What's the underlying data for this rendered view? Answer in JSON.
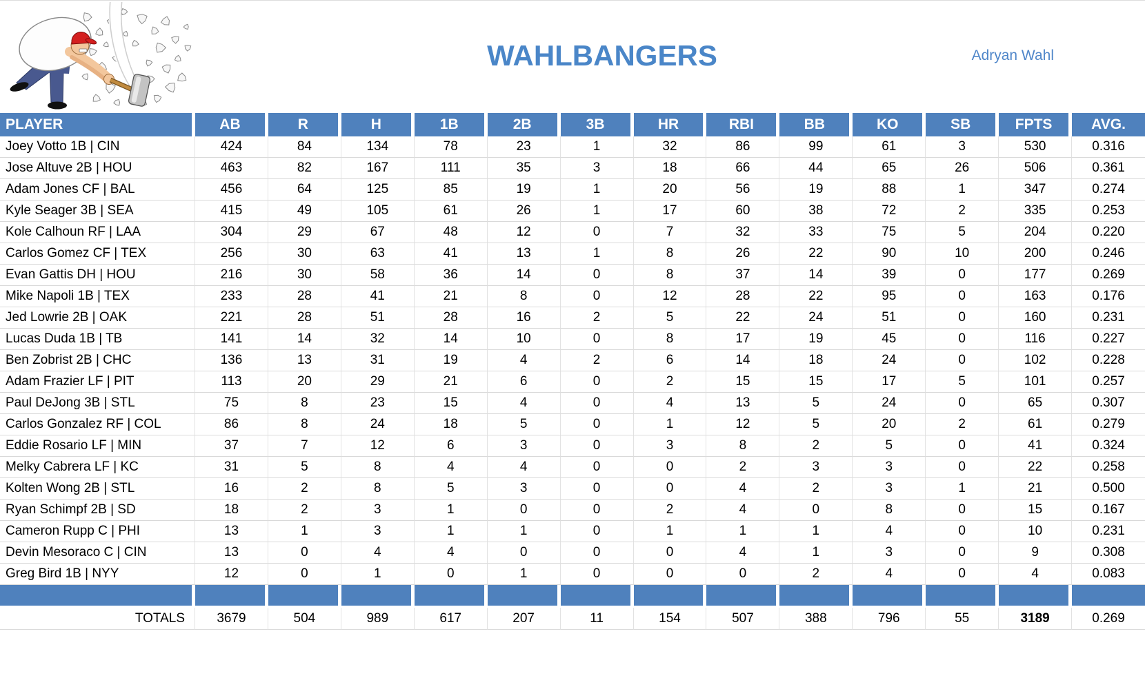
{
  "page": {
    "title": "WAHLBANGERS",
    "owner": "Adryan Wahl",
    "logo": "man-smashing-rocks-with-sledgehammer"
  },
  "colors": {
    "header_blue": "#4f81bd",
    "title_blue": "#4a86c8",
    "grid_line": "#d9d9d9"
  },
  "table": {
    "columns": [
      "PLAYER",
      "AB",
      "R",
      "H",
      "1B",
      "2B",
      "3B",
      "HR",
      "RBI",
      "BB",
      "KO",
      "SB",
      "FPTS",
      "AVG."
    ],
    "rows": [
      {
        "player": "Joey Votto 1B | CIN",
        "stats": [
          "424",
          "84",
          "134",
          "78",
          "23",
          "1",
          "32",
          "86",
          "99",
          "61",
          "3",
          "530",
          "0.316"
        ]
      },
      {
        "player": "Jose Altuve 2B | HOU",
        "stats": [
          "463",
          "82",
          "167",
          "111",
          "35",
          "3",
          "18",
          "66",
          "44",
          "65",
          "26",
          "506",
          "0.361"
        ]
      },
      {
        "player": "Adam Jones CF | BAL",
        "stats": [
          "456",
          "64",
          "125",
          "85",
          "19",
          "1",
          "20",
          "56",
          "19",
          "88",
          "1",
          "347",
          "0.274"
        ]
      },
      {
        "player": "Kyle Seager 3B | SEA",
        "stats": [
          "415",
          "49",
          "105",
          "61",
          "26",
          "1",
          "17",
          "60",
          "38",
          "72",
          "2",
          "335",
          "0.253"
        ]
      },
      {
        "player": "Kole Calhoun RF | LAA",
        "stats": [
          "304",
          "29",
          "67",
          "48",
          "12",
          "0",
          "7",
          "32",
          "33",
          "75",
          "5",
          "204",
          "0.220"
        ]
      },
      {
        "player": "Carlos Gomez CF | TEX",
        "stats": [
          "256",
          "30",
          "63",
          "41",
          "13",
          "1",
          "8",
          "26",
          "22",
          "90",
          "10",
          "200",
          "0.246"
        ]
      },
      {
        "player": "Evan Gattis DH | HOU",
        "stats": [
          "216",
          "30",
          "58",
          "36",
          "14",
          "0",
          "8",
          "37",
          "14",
          "39",
          "0",
          "177",
          "0.269"
        ]
      },
      {
        "player": "Mike Napoli 1B | TEX",
        "stats": [
          "233",
          "28",
          "41",
          "21",
          "8",
          "0",
          "12",
          "28",
          "22",
          "95",
          "0",
          "163",
          "0.176"
        ]
      },
      {
        "player": "Jed Lowrie 2B | OAK",
        "stats": [
          "221",
          "28",
          "51",
          "28",
          "16",
          "2",
          "5",
          "22",
          "24",
          "51",
          "0",
          "160",
          "0.231"
        ]
      },
      {
        "player": "Lucas Duda 1B | TB",
        "stats": [
          "141",
          "14",
          "32",
          "14",
          "10",
          "0",
          "8",
          "17",
          "19",
          "45",
          "0",
          "116",
          "0.227"
        ]
      },
      {
        "player": "Ben Zobrist 2B | CHC",
        "stats": [
          "136",
          "13",
          "31",
          "19",
          "4",
          "2",
          "6",
          "14",
          "18",
          "24",
          "0",
          "102",
          "0.228"
        ]
      },
      {
        "player": "Adam Frazier LF | PIT",
        "stats": [
          "113",
          "20",
          "29",
          "21",
          "6",
          "0",
          "2",
          "15",
          "15",
          "17",
          "5",
          "101",
          "0.257"
        ]
      },
      {
        "player": "Paul DeJong 3B | STL",
        "stats": [
          "75",
          "8",
          "23",
          "15",
          "4",
          "0",
          "4",
          "13",
          "5",
          "24",
          "0",
          "65",
          "0.307"
        ]
      },
      {
        "player": "Carlos Gonzalez RF | COL",
        "stats": [
          "86",
          "8",
          "24",
          "18",
          "5",
          "0",
          "1",
          "12",
          "5",
          "20",
          "2",
          "61",
          "0.279"
        ]
      },
      {
        "player": "Eddie Rosario LF | MIN",
        "stats": [
          "37",
          "7",
          "12",
          "6",
          "3",
          "0",
          "3",
          "8",
          "2",
          "5",
          "0",
          "41",
          "0.324"
        ]
      },
      {
        "player": "Melky Cabrera LF | KC",
        "stats": [
          "31",
          "5",
          "8",
          "4",
          "4",
          "0",
          "0",
          "2",
          "3",
          "3",
          "0",
          "22",
          "0.258"
        ]
      },
      {
        "player": "Kolten Wong 2B | STL",
        "stats": [
          "16",
          "2",
          "8",
          "5",
          "3",
          "0",
          "0",
          "4",
          "2",
          "3",
          "1",
          "21",
          "0.500"
        ]
      },
      {
        "player": "Ryan Schimpf 2B | SD",
        "stats": [
          "18",
          "2",
          "3",
          "1",
          "0",
          "0",
          "2",
          "4",
          "0",
          "8",
          "0",
          "15",
          "0.167"
        ]
      },
      {
        "player": "Cameron Rupp C | PHI",
        "stats": [
          "13",
          "1",
          "3",
          "1",
          "1",
          "0",
          "1",
          "1",
          "1",
          "4",
          "0",
          "10",
          "0.231"
        ]
      },
      {
        "player": "Devin Mesoraco C | CIN",
        "stats": [
          "13",
          "0",
          "4",
          "4",
          "0",
          "0",
          "0",
          "4",
          "1",
          "3",
          "0",
          "9",
          "0.308"
        ]
      },
      {
        "player": "Greg Bird 1B | NYY",
        "stats": [
          "12",
          "0",
          "1",
          "0",
          "1",
          "0",
          "0",
          "0",
          "2",
          "4",
          "0",
          "4",
          "0.083"
        ]
      }
    ],
    "totals_label": "TOTALS",
    "totals": [
      "3679",
      "504",
      "989",
      "617",
      "207",
      "11",
      "154",
      "507",
      "388",
      "796",
      "55",
      "3189",
      "0.269"
    ]
  }
}
